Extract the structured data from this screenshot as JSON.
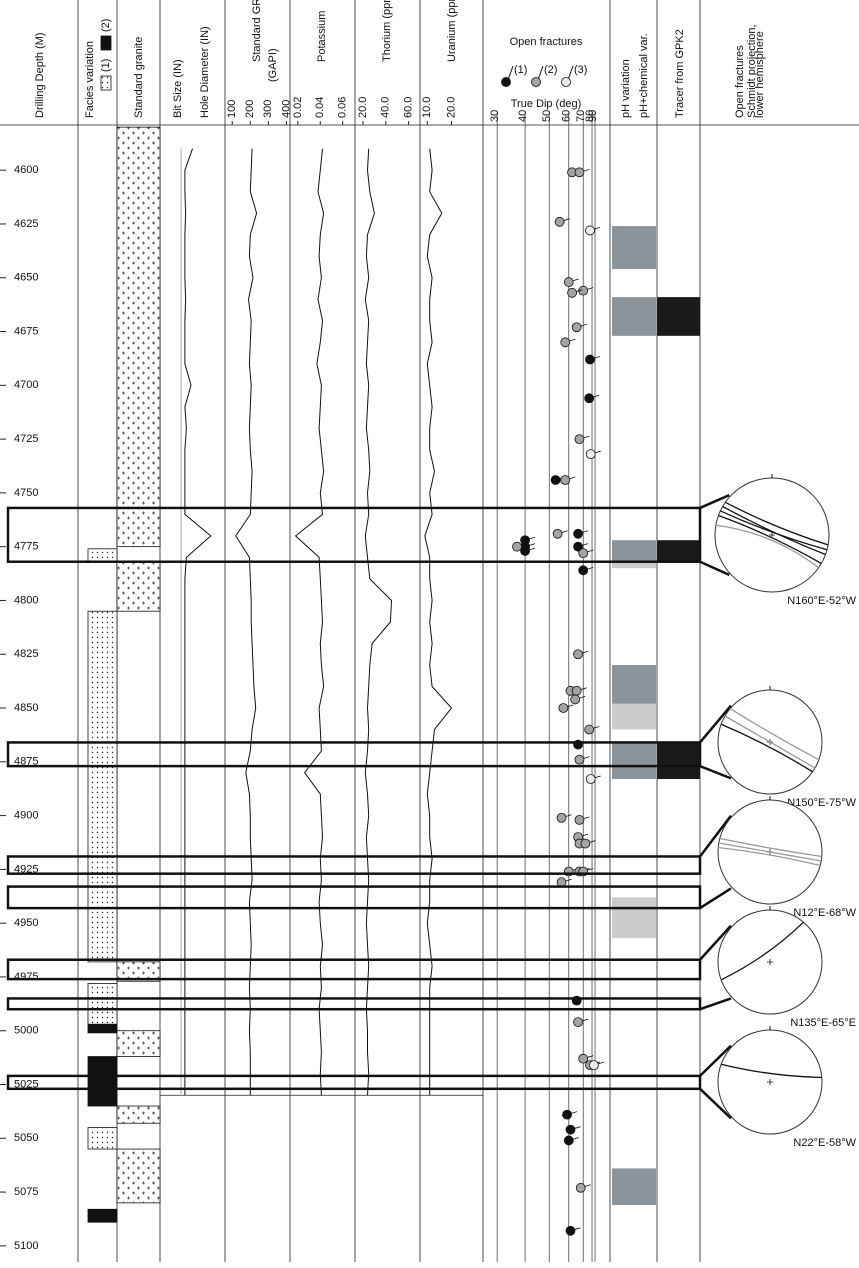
{
  "chart_data": {
    "type": "well-log",
    "depth_label": "Drilling Depth (M)",
    "ylim": [
      4579,
      5107.5
    ],
    "yticks": [
      4600,
      4625,
      4650,
      4675,
      4700,
      4725,
      4750,
      4775,
      4800,
      4825,
      4850,
      4875,
      4900,
      4925,
      4950,
      4975,
      5000,
      5025,
      5050,
      5075,
      5100
    ],
    "facies": {
      "label": "Facies variation",
      "series": [
        {
          "name": "(1)",
          "intervals": [
            [
              4776,
              4782
            ],
            [
              4805,
              4968
            ],
            [
              4978,
              4997
            ],
            [
              5045,
              5055
            ]
          ]
        },
        {
          "name": "(2)",
          "intervals": [
            [
              4997,
              5001
            ],
            [
              5012,
              5035
            ],
            [
              5083,
              5089
            ]
          ]
        }
      ]
    },
    "granite": {
      "label": "Standard granite",
      "intervals": [
        [
          4580,
          4775
        ],
        [
          4782,
          4805
        ],
        [
          4968,
          4977
        ],
        [
          5000,
          5012
        ],
        [
          5035,
          5043
        ],
        [
          5055,
          5080
        ]
      ]
    },
    "log_depths": [
      4590,
      4600,
      4610,
      4620,
      4630,
      4640,
      4650,
      4660,
      4670,
      4680,
      4690,
      4700,
      4710,
      4720,
      4730,
      4740,
      4750,
      4760,
      4770,
      4780,
      4790,
      4800,
      4810,
      4820,
      4830,
      4840,
      4850,
      4860,
      4870,
      4880,
      4890,
      4900,
      4910,
      4920,
      4930,
      4940,
      4950,
      4960,
      4970,
      4980,
      4990,
      5000,
      5010,
      5020,
      5030
    ],
    "hole": {
      "bit_label": "Bit Size (IN)",
      "label": "Hole Diameter (IN)",
      "xlim": [
        8,
        12
      ],
      "bit_size": 9.25,
      "values": [
        10.0,
        9.5,
        9.5,
        9.55,
        9.5,
        9.5,
        9.5,
        9.55,
        9.5,
        9.5,
        9.5,
        9.9,
        9.5,
        9.6,
        9.5,
        9.5,
        9.5,
        9.5,
        11.2,
        9.6,
        9.5,
        9.5,
        9.5,
        9.5,
        9.5,
        9.5,
        9.5,
        9.5,
        9.5,
        9.5,
        9.5,
        9.5,
        9.5,
        9.5,
        9.5,
        9.5,
        9.5,
        9.5,
        9.5,
        9.5,
        9.5,
        9.5,
        9.5,
        9.5,
        9.5
      ]
    },
    "tracks": [
      {
        "name": "Standard GR",
        "unit": "(GAPI)",
        "xlim": [
          60,
          420
        ],
        "xticks": [
          100,
          200,
          300,
          400
        ],
        "values": [
          210,
          205,
          200,
          235,
          200,
          195,
          215,
          190,
          205,
          200,
          195,
          205,
          200,
          195,
          200,
          210,
          205,
          200,
          120,
          195,
          200,
          205,
          205,
          210,
          215,
          220,
          230,
          210,
          200,
          175,
          195,
          200,
          200,
          205,
          210,
          195,
          200,
          205,
          200,
          195,
          200,
          195,
          200,
          200,
          200
        ]
      },
      {
        "name": "Potassium",
        "xlim": [
          0.013,
          0.071
        ],
        "xticks": [
          0.02,
          0.04,
          0.06
        ],
        "values": [
          0.042,
          0.04,
          0.038,
          0.043,
          0.04,
          0.039,
          0.041,
          0.038,
          0.042,
          0.04,
          0.037,
          0.041,
          0.04,
          0.039,
          0.041,
          0.043,
          0.04,
          0.042,
          0.018,
          0.039,
          0.04,
          0.041,
          0.042,
          0.04,
          0.041,
          0.043,
          0.039,
          0.04,
          0.041,
          0.026,
          0.04,
          0.041,
          0.042,
          0.04,
          0.041,
          0.039,
          0.04,
          0.042,
          0.04,
          0.041,
          0.039,
          0.04,
          0.041,
          0.04,
          0.041
        ]
      },
      {
        "name": "Thorium (ppm)",
        "xlim": [
          13,
          70
        ],
        "xticks": [
          {
            "value": 20,
            "label": "20.0"
          },
          {
            "value": 40,
            "label": "40.0"
          },
          {
            "value": 60,
            "label": "60.0"
          }
        ],
        "values": [
          25,
          24,
          26,
          30,
          24,
          23,
          25,
          22,
          25,
          24,
          23,
          25,
          24,
          23,
          25,
          26,
          24,
          25,
          22,
          24,
          26,
          45,
          44,
          28,
          26,
          25,
          24,
          25,
          24,
          22,
          24,
          25,
          23,
          24,
          25,
          24,
          23,
          24,
          25,
          24,
          23,
          24,
          24,
          25,
          24
        ]
      },
      {
        "name": "Uranium (ppm)",
        "xlim": [
          7,
          33
        ],
        "xticks": [
          {
            "value": 10,
            "label": "10.0"
          },
          {
            "value": 20,
            "label": "20.0"
          }
        ],
        "values": [
          11,
          12,
          11,
          16,
          11,
          10,
          12,
          11,
          11,
          12,
          10,
          11,
          12,
          11,
          11,
          13,
          11,
          12,
          9,
          11,
          11,
          12,
          11,
          12,
          11,
          12,
          20,
          13,
          12,
          11,
          10,
          11,
          11,
          12,
          11,
          11,
          10,
          11,
          12,
          11,
          11,
          11,
          11,
          11,
          11
        ]
      }
    ],
    "fractures": {
      "title": "Open fractures",
      "axis_label": "True Dip (deg)",
      "scale": "sine",
      "xlim": [
        25,
        90
      ],
      "xticks": [
        30,
        40,
        50,
        60,
        70,
        80,
        90
      ],
      "series": [
        {
          "name": "(1)",
          "color": "#111111",
          "depth": [
            4688,
            4706,
            4744,
            4769,
            4772,
            4775,
            4777,
            4775,
            4786,
            4867,
            4986,
            5039,
            5046,
            5051,
            5093
          ],
          "dip": [
            77,
            76,
            53,
            66,
            40,
            40,
            40,
            66,
            70,
            66,
            65,
            59,
            61,
            60,
            61
          ]
        },
        {
          "name": "(2)",
          "color": "#a3a3a3",
          "depth": [
            4601,
            4601,
            4624,
            4652,
            4656,
            4657,
            4673,
            4680,
            4725,
            4744,
            4769,
            4775,
            4778,
            4825,
            4842,
            4842,
            4846,
            4850,
            4860,
            4874,
            4901,
            4902,
            4910,
            4913,
            4913,
            4926,
            4926,
            4926,
            4931,
            4996,
            5013,
            5016,
            5073
          ],
          "dip": [
            62,
            67,
            55,
            60,
            70,
            62,
            65,
            58,
            67,
            58,
            54,
            37,
            70,
            66,
            61,
            65,
            64,
            57,
            76,
            67,
            56,
            67,
            66,
            67,
            72,
            60,
            67,
            70,
            56,
            66,
            70,
            77,
            68
          ]
        },
        {
          "name": "(3)",
          "color": "#ececec",
          "depth": [
            4628,
            4732,
            4883,
            5016
          ],
          "dip": [
            77,
            78,
            78,
            84
          ]
        }
      ]
    },
    "ph": {
      "series": [
        {
          "name": "pH variation",
          "color": "#c9cbcd",
          "intervals": [
            [
              4782,
              4785
            ],
            [
              4848,
              4860
            ],
            [
              4938,
              4957
            ]
          ]
        },
        {
          "name": "pH+chemical var.",
          "color": "#8b949a",
          "intervals": [
            [
              4626,
              4646
            ],
            [
              4659,
              4677
            ],
            [
              4772,
              4782
            ],
            [
              4830,
              4848
            ],
            [
              4866,
              4883
            ],
            [
              5064,
              5081
            ]
          ]
        }
      ]
    },
    "tracer": {
      "label": "Tracer from GPK2",
      "color": "#1a1a1a",
      "intervals": [
        [
          4659,
          4677
        ],
        [
          4772,
          4782
        ],
        [
          4866,
          4883
        ]
      ]
    },
    "stereo": {
      "label": "Open fractures",
      "note": [
        "Schmidt projection,",
        "lower hemisphere"
      ],
      "nets": [
        {
          "caption": "N160°E-52°W",
          "zones": [
            [
              4757,
              4782
            ]
          ]
        },
        {
          "caption": "N150°E-75°W",
          "zones": [
            [
              4866,
              4877
            ]
          ]
        },
        {
          "caption": "N12°E-68°W",
          "zones": [
            [
              4919,
              4927
            ],
            [
              4933,
              4943
            ]
          ]
        },
        {
          "caption": "N135°E-65°E",
          "zones": [
            [
              4967,
              4976
            ],
            [
              4985,
              4990
            ]
          ]
        },
        {
          "caption": "N22°E-58°W",
          "zones": [
            [
              5021,
              5027
            ]
          ]
        }
      ]
    }
  }
}
